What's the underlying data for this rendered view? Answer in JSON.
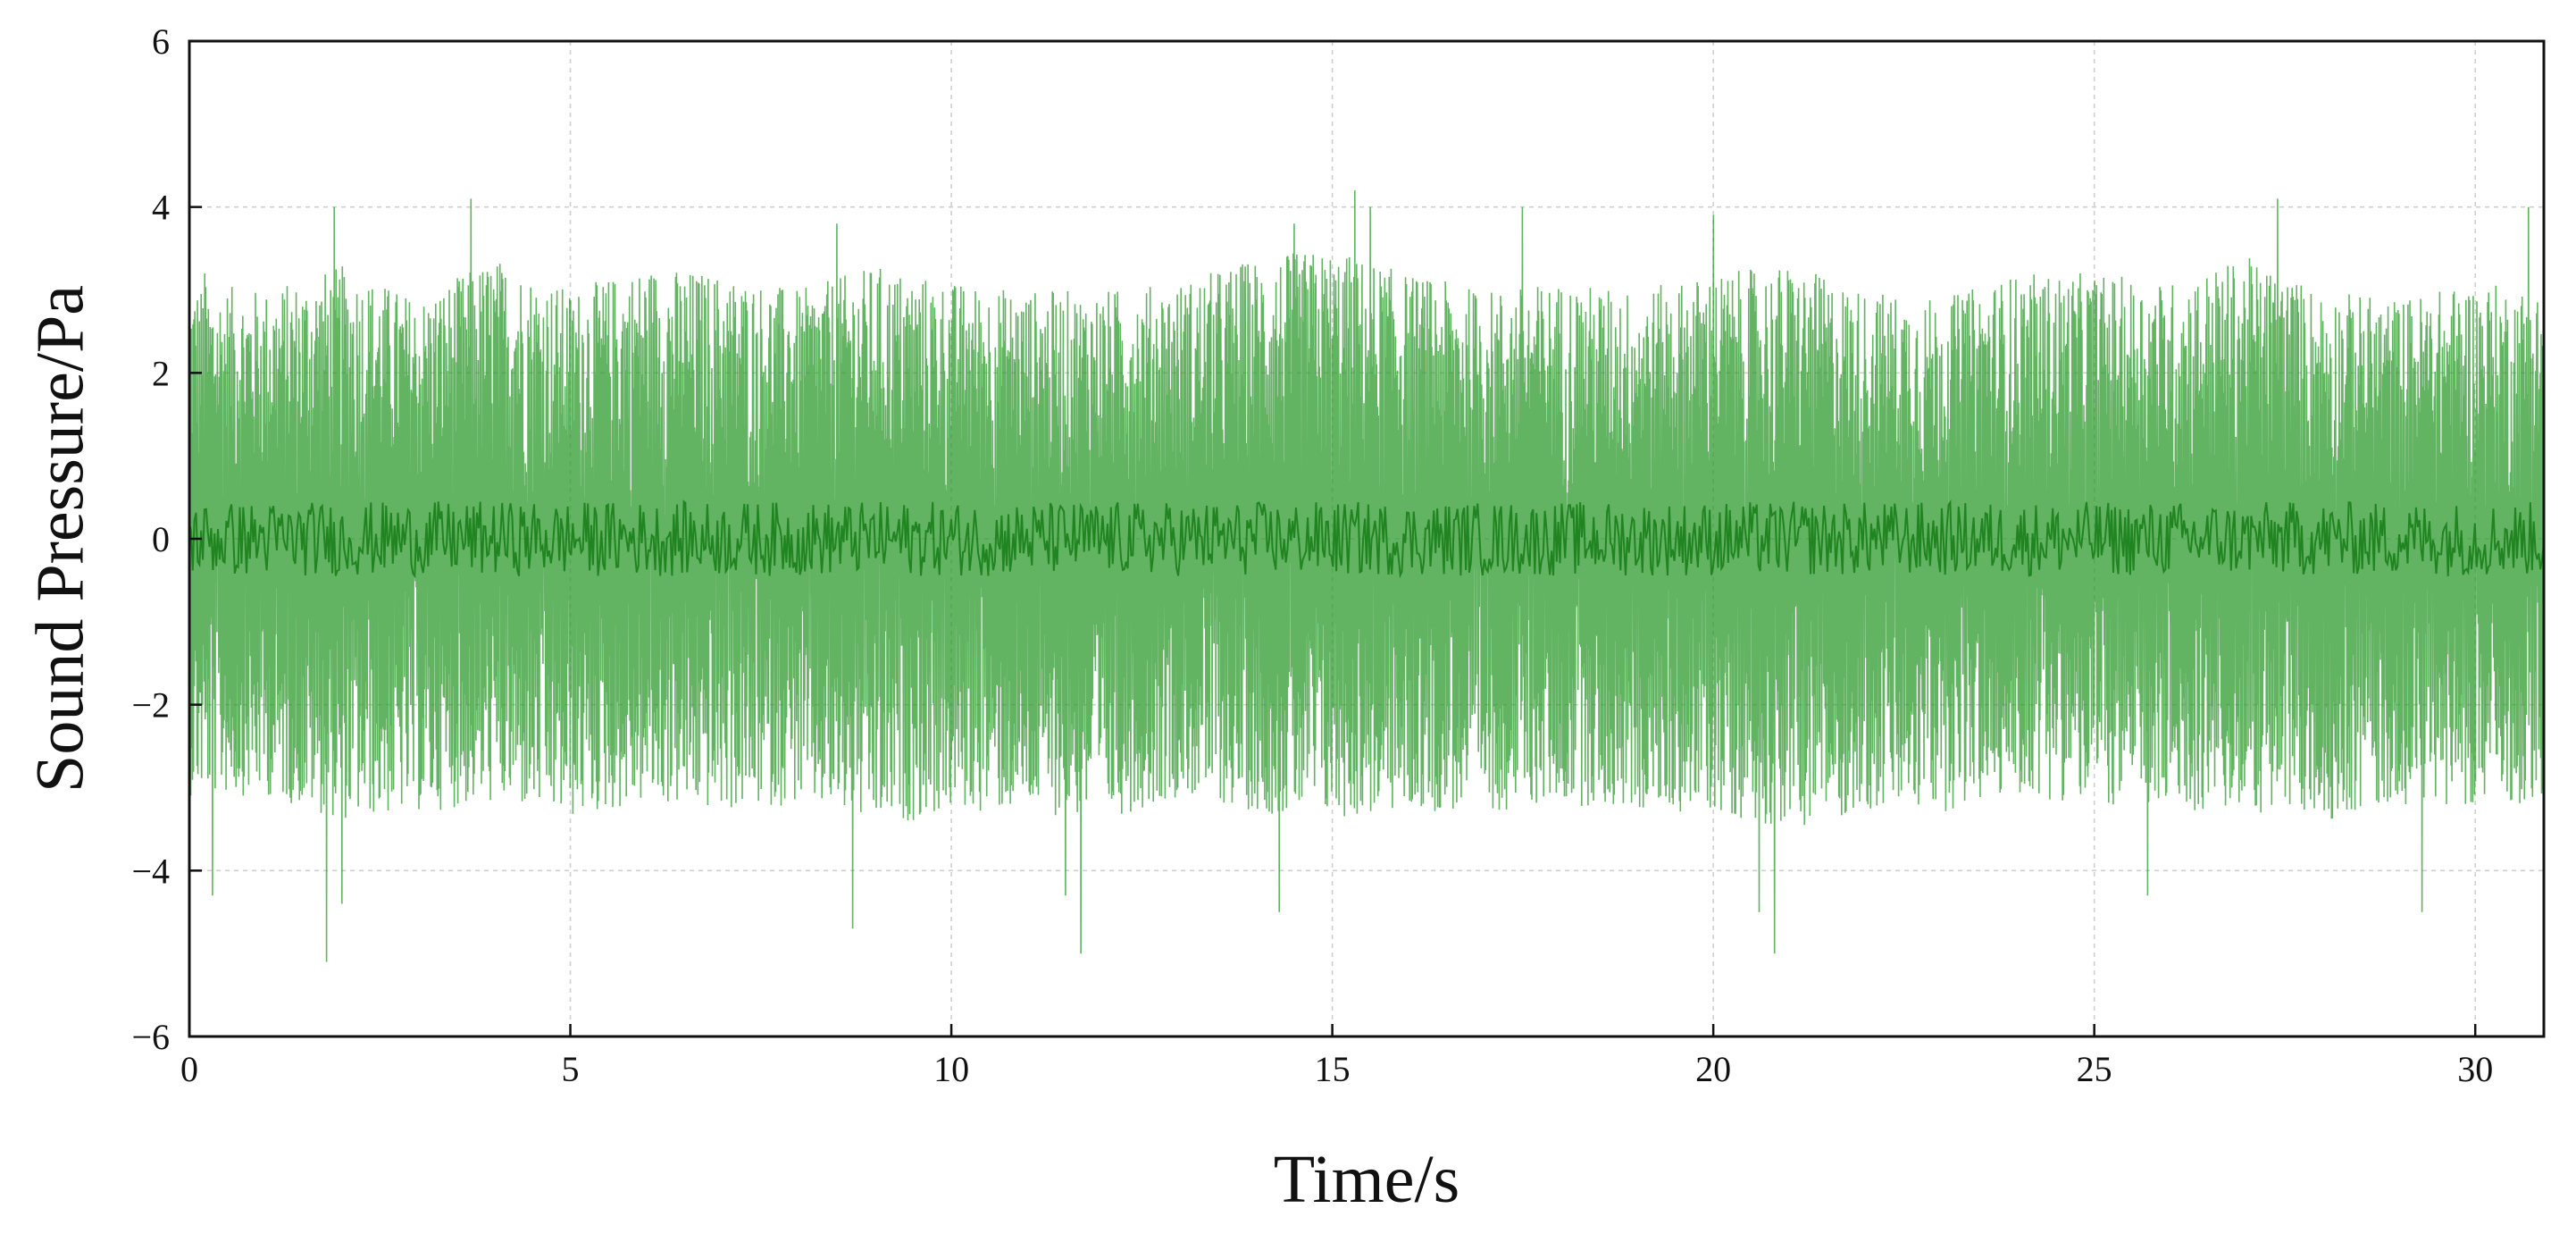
{
  "chart_data": {
    "type": "line",
    "title": "",
    "xlabel": "Time/s",
    "ylabel": "Sound Pressure/Pa",
    "xlim": [
      0,
      30.9
    ],
    "ylim": [
      -6,
      6
    ],
    "x_ticks": [
      0,
      5,
      10,
      15,
      20,
      25,
      30
    ],
    "x_tick_labels": [
      "0",
      "5",
      "10",
      "15",
      "20",
      "25",
      "30"
    ],
    "y_ticks": [
      6,
      4,
      2,
      0,
      -2,
      -4,
      -6
    ],
    "y_tick_labels": [
      "6",
      "4",
      "2",
      "0",
      "−2",
      "−4",
      "−6"
    ],
    "grid": true,
    "legend": "none",
    "series": [
      {
        "color": "#2e9a2e",
        "description_of_signal": "dense zero-mean oscillation",
        "envelope_x": [
          0,
          1,
          2,
          3,
          4,
          5,
          6,
          7,
          8,
          9,
          10,
          11,
          12,
          13,
          14,
          15,
          16,
          17,
          18,
          19,
          20,
          21,
          22,
          23,
          24,
          25,
          26,
          27,
          28,
          29,
          30,
          30.9
        ],
        "envelope_upper": [
          3.1,
          3.0,
          3.3,
          2.9,
          3.4,
          3.0,
          3.3,
          3.2,
          3.0,
          3.3,
          3.1,
          3.0,
          3.0,
          3.1,
          3.4,
          3.5,
          3.2,
          3.0,
          3.1,
          3.0,
          3.2,
          3.3,
          3.0,
          2.9,
          3.2,
          3.2,
          3.1,
          3.4,
          3.0,
          2.9,
          3.1,
          3.0
        ],
        "envelope_lower": [
          -3.1,
          -3.1,
          -3.4,
          -3.3,
          -3.2,
          -3.4,
          -3.2,
          -3.3,
          -3.2,
          -3.5,
          -3.3,
          -3.3,
          -3.4,
          -3.1,
          -3.3,
          -3.4,
          -3.3,
          -3.3,
          -3.2,
          -3.3,
          -3.3,
          -3.5,
          -3.3,
          -3.3,
          -3.1,
          -3.2,
          -3.3,
          -3.3,
          -3.4,
          -3.2,
          -3.2,
          -3.2
        ],
        "peaks_x": [
          0.2,
          1.9,
          3.7,
          8.5,
          14.5,
          15.3,
          15.5,
          17.5,
          20.0,
          27.4,
          30.7
        ],
        "peaks_y": [
          3.2,
          4.0,
          4.1,
          3.8,
          3.8,
          4.2,
          4.0,
          4.0,
          3.9,
          4.1,
          4.0
        ],
        "troughs_x": [
          0.3,
          1.8,
          2.0,
          8.7,
          11.5,
          11.7,
          14.3,
          20.6,
          20.8,
          25.7,
          29.3
        ],
        "troughs_y": [
          -4.3,
          -5.1,
          -4.4,
          -4.7,
          -4.3,
          -5.0,
          -4.5,
          -4.5,
          -5.0,
          -4.3,
          -4.5
        ]
      }
    ]
  }
}
